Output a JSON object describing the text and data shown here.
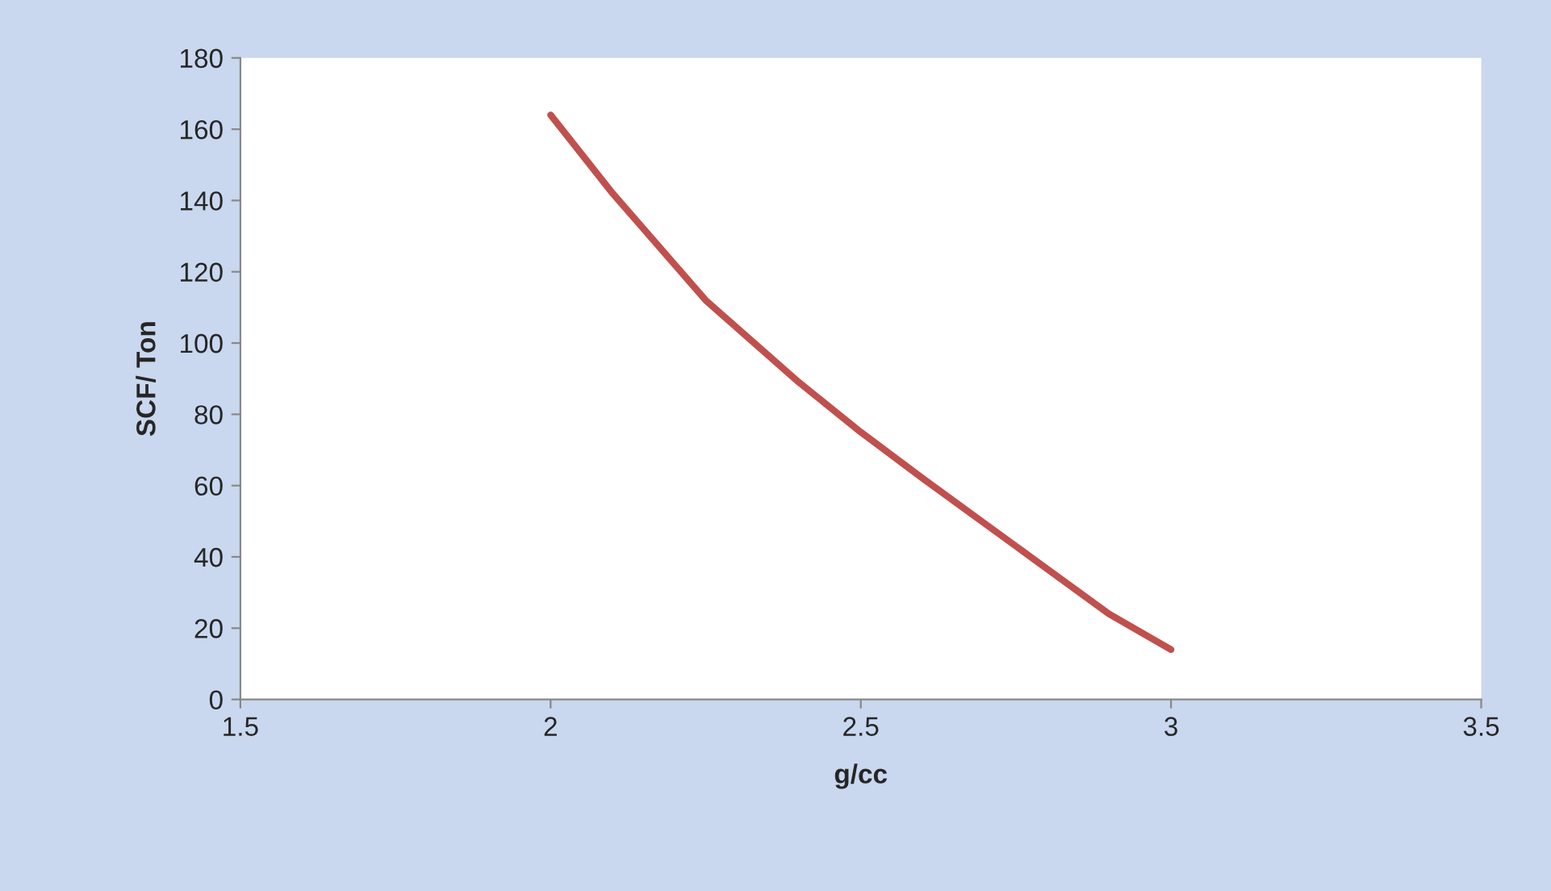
{
  "chart_data": {
    "type": "line",
    "xlabel": "g/cc",
    "ylabel": "SCF/ Ton",
    "x": [
      2,
      2.1,
      2.25,
      2.4,
      2.5,
      2.6,
      2.75,
      2.9,
      3
    ],
    "series": [
      {
        "color": "#c0504d",
        "values": [
          164,
          142,
          112,
          89,
          75,
          62,
          43,
          24,
          14
        ]
      }
    ],
    "xlim": [
      1.5,
      3.5
    ],
    "xticks": [
      1.5,
      2,
      2.5,
      3,
      3.5
    ],
    "ylim": [
      0,
      180
    ],
    "yticks": [
      0,
      20,
      40,
      60,
      80,
      100,
      120,
      140,
      160,
      180
    ],
    "grid": false,
    "legend": false,
    "marker": "none",
    "line_style": "solid"
  }
}
